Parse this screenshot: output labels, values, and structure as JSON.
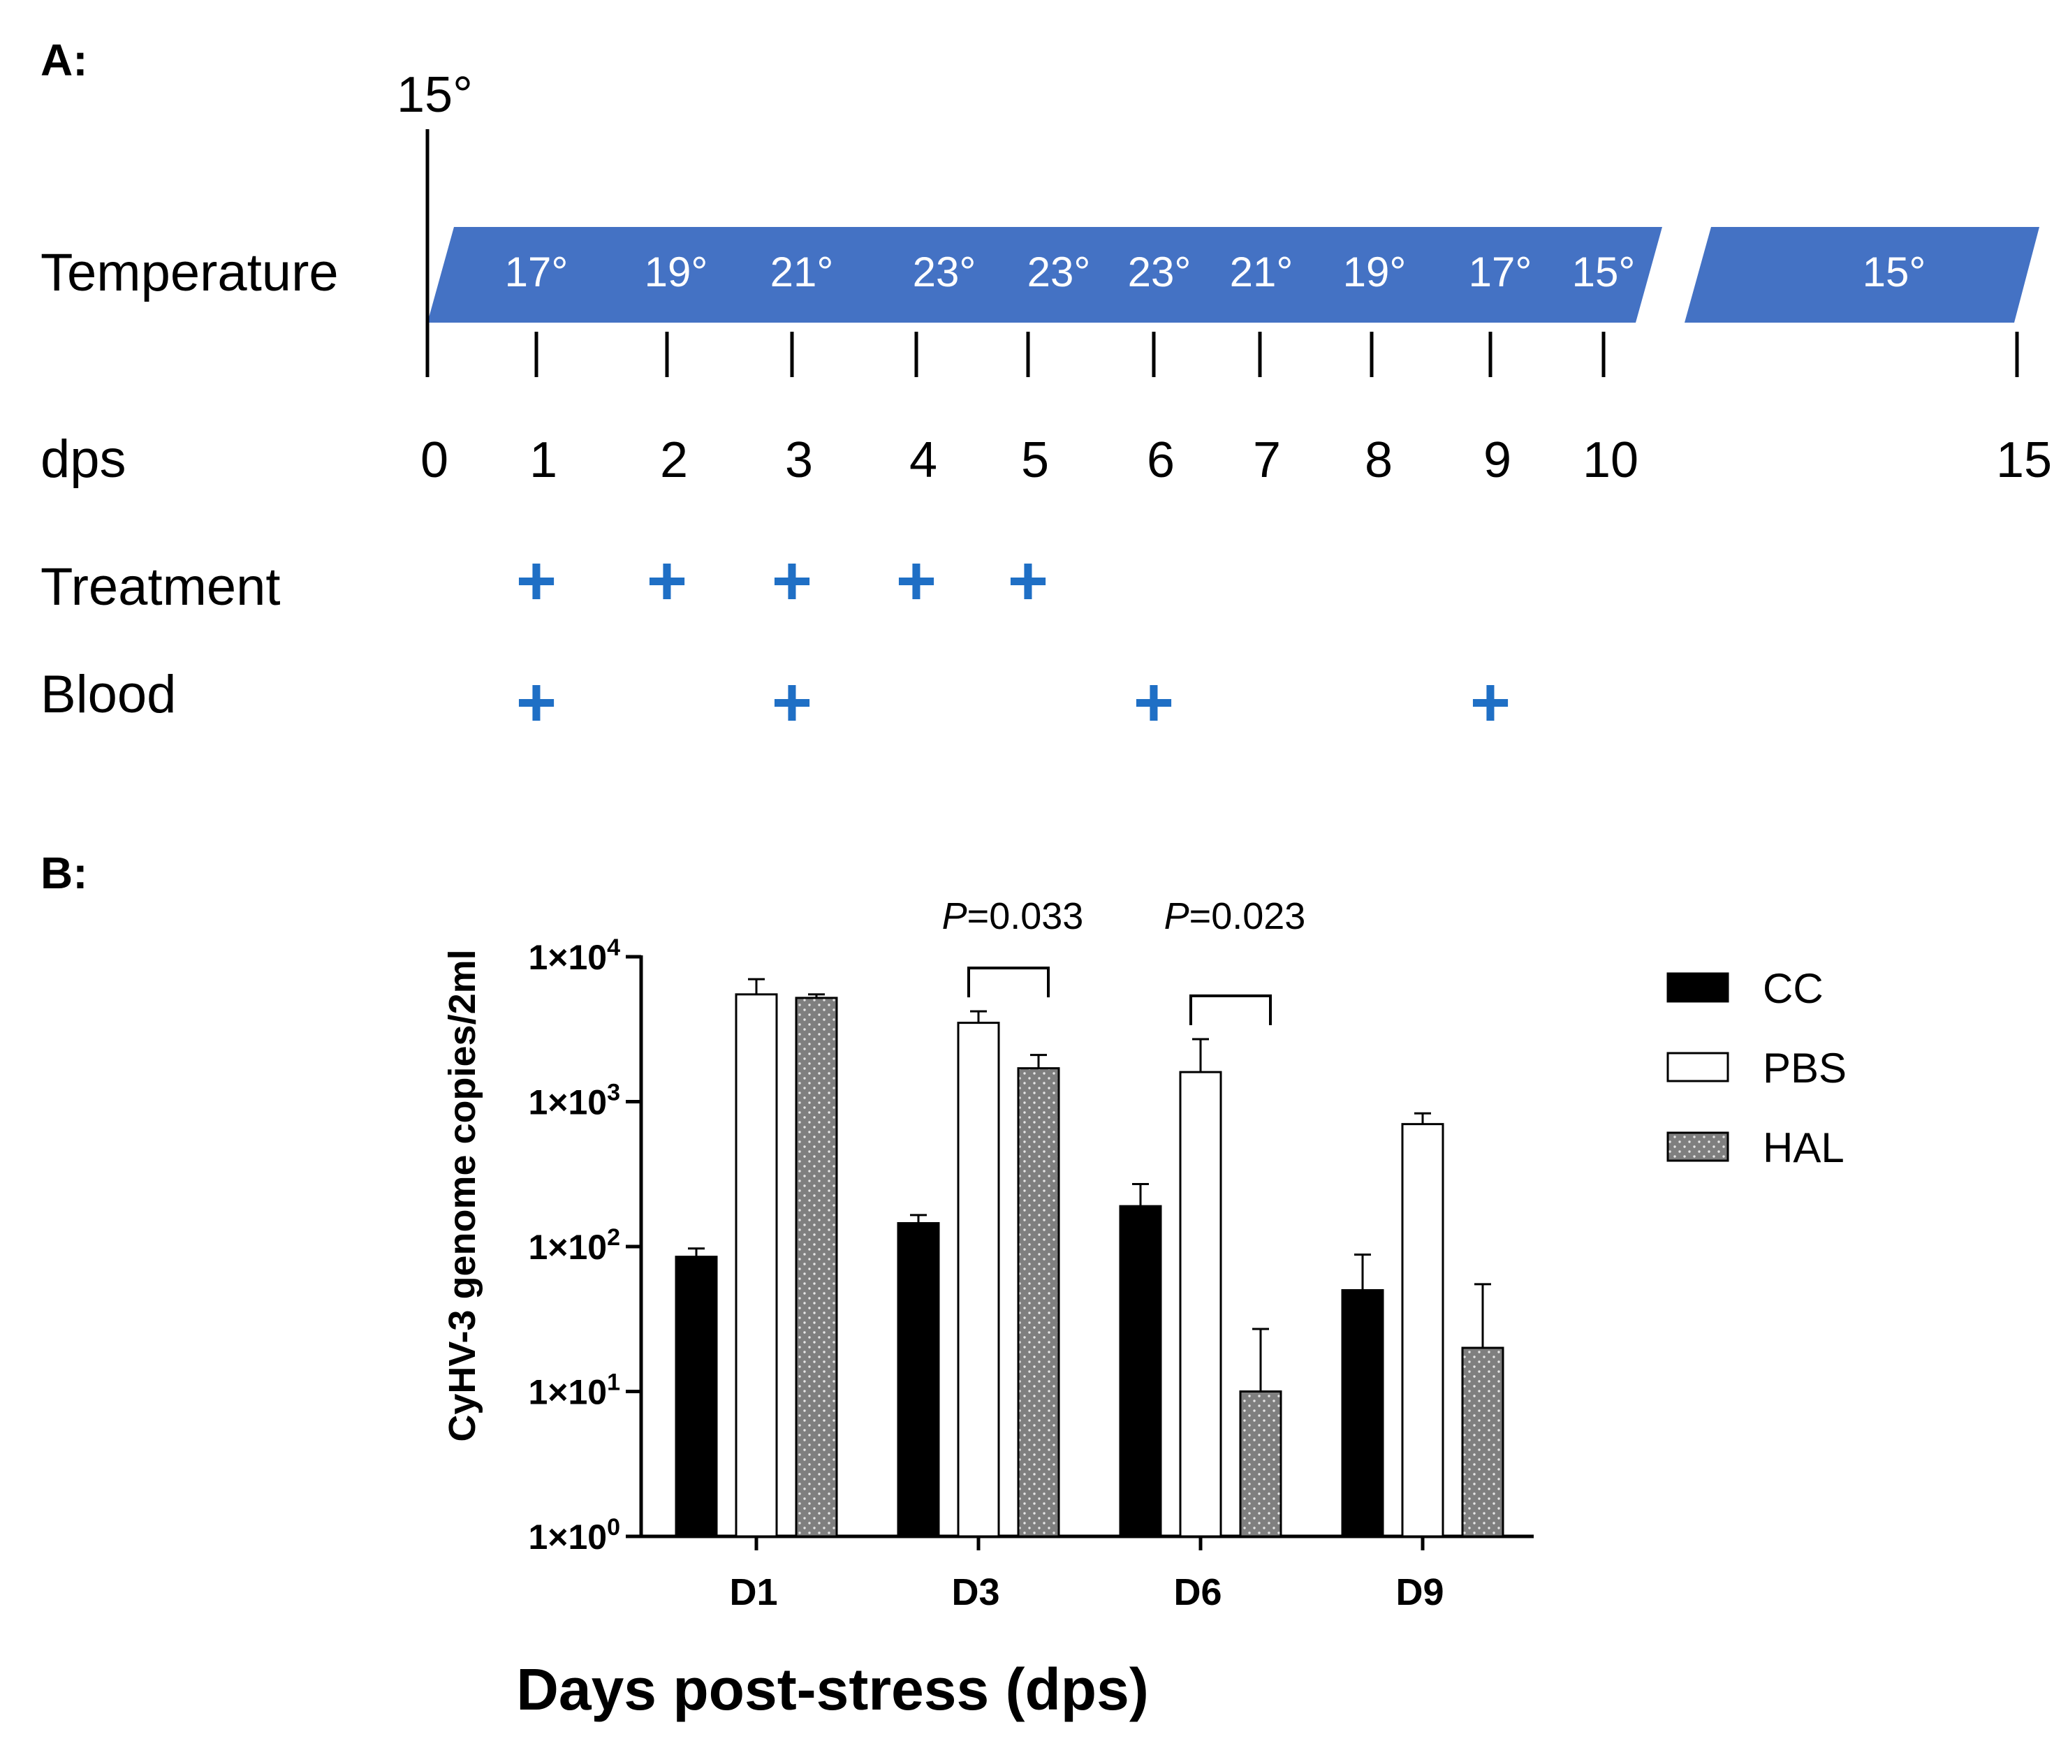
{
  "panel_a": {
    "label": "A:",
    "start_temp": "15°",
    "rows": {
      "temperature": "Temperature",
      "dps": "dps",
      "treatment": "Treatment",
      "blood": "Blood"
    },
    "band_color": "#4472c4",
    "temperatures": [
      "17°",
      "19°",
      "21°",
      "23°",
      "23°",
      "23°",
      "21°",
      "19°",
      "17°",
      "15°"
    ],
    "end_temperature": "15°",
    "dps_days": [
      "0",
      "1",
      "2",
      "3",
      "4",
      "5",
      "6",
      "7",
      "8",
      "9",
      "10",
      "15"
    ],
    "plus_symbol": "+",
    "plus_color": "#1f6fc5",
    "treatment_days": [
      1,
      2,
      3,
      4,
      5
    ],
    "blood_days": [
      1,
      3,
      6,
      9
    ]
  },
  "chart_data": {
    "type": "bar",
    "panel_label": "B:",
    "scale": "log",
    "categories": [
      "D1",
      "D3",
      "D6",
      "D9"
    ],
    "series": [
      {
        "name": "CC",
        "values": [
          85,
          145,
          190,
          50
        ],
        "error_upper": [
          97,
          165,
          270,
          88
        ],
        "color": "#000000",
        "pattern": "solid"
      },
      {
        "name": "PBS",
        "values": [
          5500,
          3500,
          1600,
          700
        ],
        "error_upper": [
          7000,
          4200,
          2700,
          830
        ],
        "color": "#ffffff",
        "pattern": "open"
      },
      {
        "name": "HAL",
        "values": [
          5200,
          1700,
          10,
          20
        ],
        "error_upper": [
          5500,
          2100,
          27,
          55
        ],
        "color": "#7f7f7f",
        "pattern": "dotted"
      }
    ],
    "xlabel": "Days post-stress (dps)",
    "ylabel": "CyHV-3 genome copies/2ml",
    "ylim": [
      1,
      10000
    ],
    "y_ticks": [
      {
        "value": 1,
        "prefix": "1×10",
        "exp": "0"
      },
      {
        "value": 10,
        "prefix": "1×10",
        "exp": "1"
      },
      {
        "value": 100,
        "prefix": "1×10",
        "exp": "2"
      },
      {
        "value": 1000,
        "prefix": "1×10",
        "exp": "3"
      },
      {
        "value": 10000,
        "prefix": "1×10",
        "exp": "4"
      }
    ],
    "annotations": [
      {
        "category": "D3",
        "from_series": "PBS",
        "to_series": "HAL",
        "p_symbol": "P",
        "text": "=0.033"
      },
      {
        "category": "D6",
        "from_series": "PBS",
        "to_series": "HAL",
        "p_symbol": "P",
        "text": "=0.023"
      }
    ],
    "legend": {
      "position": "right",
      "entries": [
        "CC",
        "PBS",
        "HAL"
      ]
    }
  }
}
